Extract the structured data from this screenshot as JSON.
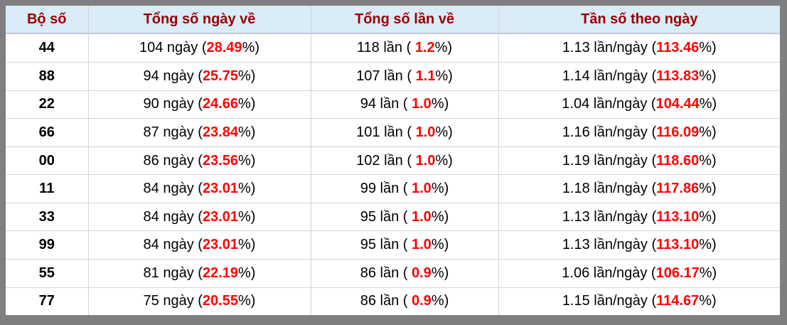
{
  "colors": {
    "header_bg": "#d9ecf7",
    "header_text": "#990000",
    "highlight_red": "#ff0000",
    "frame_gray": "#7f7f7f",
    "grid_line": "#d4d4d4"
  },
  "table": {
    "headers": [
      "Bộ số",
      "Tổng số ngày về",
      "Tổng số lần về",
      "Tần số theo ngày"
    ],
    "rows": [
      {
        "so": "44",
        "ngay": {
          "pre": "104 ngày (",
          "red": "28.49",
          "post": "%)"
        },
        "lan": {
          "pre": "118 lần ( ",
          "red": "1.2",
          "post": "%)"
        },
        "tanso": {
          "pre": "1.13 lần/ngày (",
          "red": "113.46",
          "post": "%)"
        }
      },
      {
        "so": "88",
        "ngay": {
          "pre": "94 ngày (",
          "red": "25.75",
          "post": "%)"
        },
        "lan": {
          "pre": "107 lần ( ",
          "red": "1.1",
          "post": "%)"
        },
        "tanso": {
          "pre": "1.14 lần/ngày (",
          "red": "113.83",
          "post": "%)"
        }
      },
      {
        "so": "22",
        "ngay": {
          "pre": "90 ngày (",
          "red": "24.66",
          "post": "%)"
        },
        "lan": {
          "pre": "94 lần ( ",
          "red": "1.0",
          "post": "%)"
        },
        "tanso": {
          "pre": "1.04 lần/ngày (",
          "red": "104.44",
          "post": "%)"
        }
      },
      {
        "so": "66",
        "ngay": {
          "pre": "87 ngày (",
          "red": "23.84",
          "post": "%)"
        },
        "lan": {
          "pre": "101 lần ( ",
          "red": "1.0",
          "post": "%)"
        },
        "tanso": {
          "pre": "1.16 lần/ngày (",
          "red": "116.09",
          "post": "%)"
        }
      },
      {
        "so": "00",
        "ngay": {
          "pre": "86 ngày (",
          "red": "23.56",
          "post": "%)"
        },
        "lan": {
          "pre": "102 lần ( ",
          "red": "1.0",
          "post": "%)"
        },
        "tanso": {
          "pre": "1.19 lần/ngày (",
          "red": "118.60",
          "post": "%)"
        }
      },
      {
        "so": "11",
        "ngay": {
          "pre": "84 ngày (",
          "red": "23.01",
          "post": "%)"
        },
        "lan": {
          "pre": "99 lần ( ",
          "red": "1.0",
          "post": "%)"
        },
        "tanso": {
          "pre": "1.18 lần/ngày (",
          "red": "117.86",
          "post": "%)"
        }
      },
      {
        "so": "33",
        "ngay": {
          "pre": "84 ngày (",
          "red": "23.01",
          "post": "%)"
        },
        "lan": {
          "pre": "95 lần ( ",
          "red": "1.0",
          "post": "%)"
        },
        "tanso": {
          "pre": "1.13 lần/ngày (",
          "red": "113.10",
          "post": "%)"
        }
      },
      {
        "so": "99",
        "ngay": {
          "pre": "84 ngày (",
          "red": "23.01",
          "post": "%)"
        },
        "lan": {
          "pre": "95 lần ( ",
          "red": "1.0",
          "post": "%)"
        },
        "tanso": {
          "pre": "1.13 lần/ngày (",
          "red": "113.10",
          "post": "%)"
        }
      },
      {
        "so": "55",
        "ngay": {
          "pre": "81 ngày (",
          "red": "22.19",
          "post": "%)"
        },
        "lan": {
          "pre": "86 lần ( ",
          "red": "0.9",
          "post": "%)"
        },
        "tanso": {
          "pre": "1.06 lần/ngày (",
          "red": "106.17",
          "post": "%)"
        }
      },
      {
        "so": "77",
        "ngay": {
          "pre": "75 ngày (",
          "red": "20.55",
          "post": "%)"
        },
        "lan": {
          "pre": "86 lần ( ",
          "red": "0.9",
          "post": "%)"
        },
        "tanso": {
          "pre": "1.15 lần/ngày (",
          "red": "114.67",
          "post": "%)"
        }
      }
    ]
  }
}
